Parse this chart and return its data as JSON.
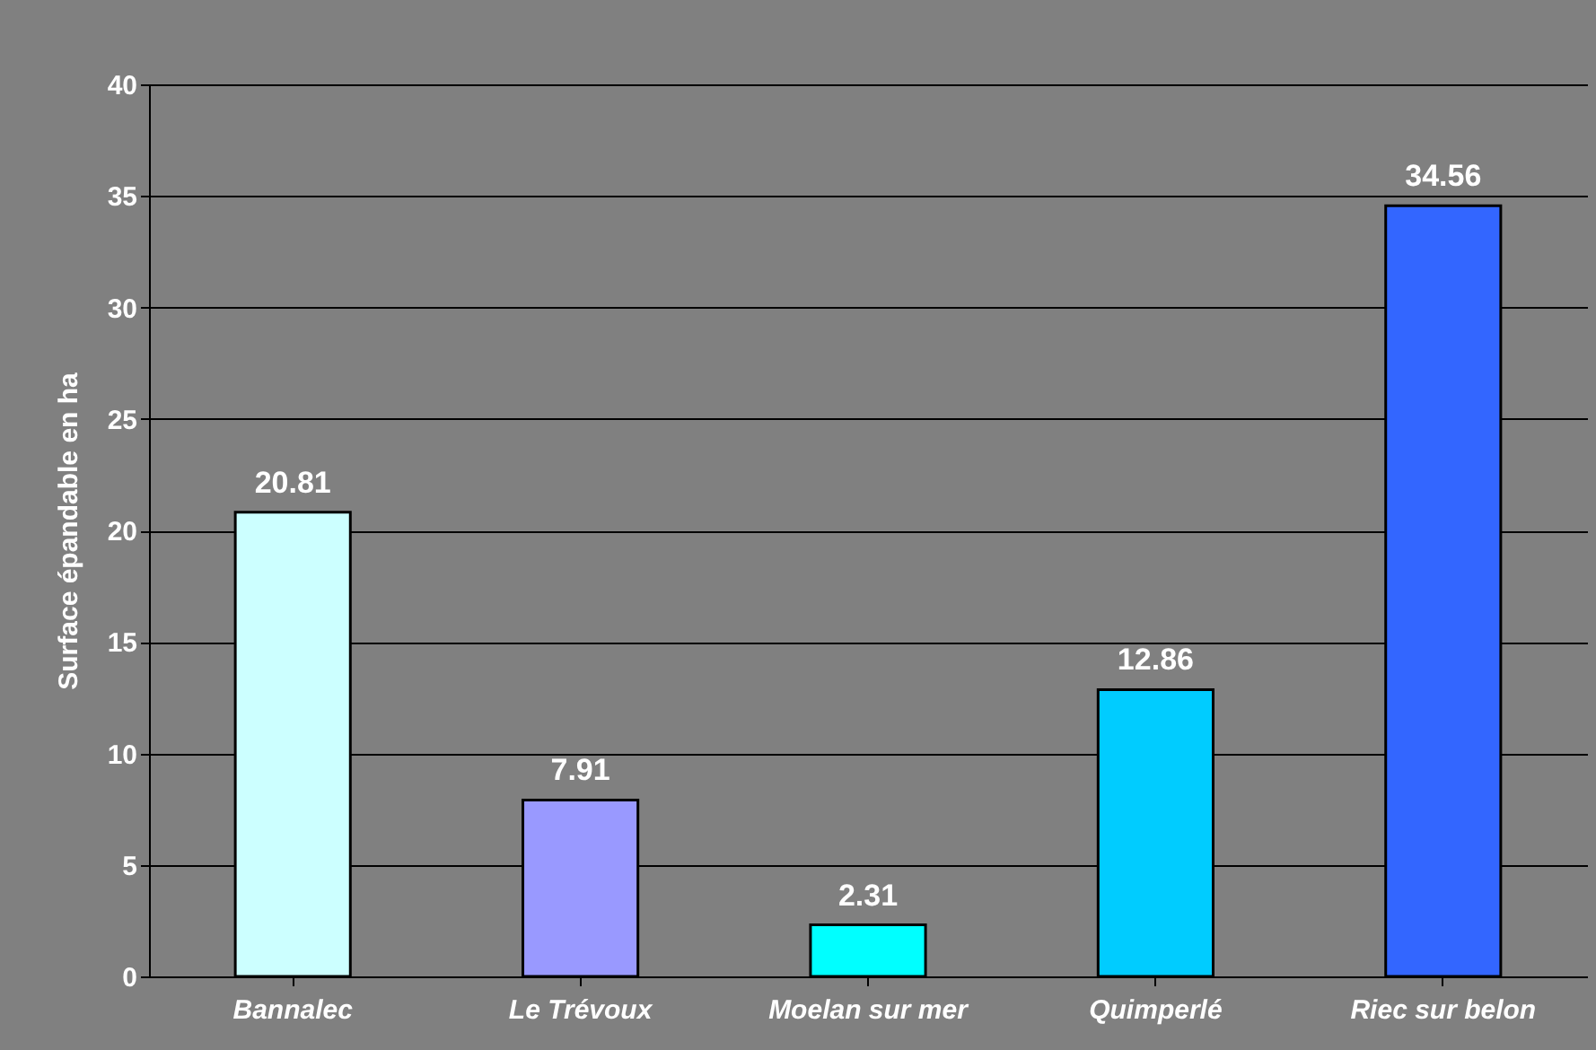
{
  "chart_data": {
    "type": "bar",
    "ylabel": "Surface épandable en ha",
    "categories": [
      "Bannalec",
      "Le Trévoux",
      "Moelan sur mer",
      "Quimperlé",
      "Riec sur belon"
    ],
    "values": [
      20.81,
      7.91,
      2.31,
      12.86,
      34.56
    ],
    "colors": [
      "#ccffff",
      "#9999ff",
      "#00ffff",
      "#00ccff",
      "#3366ff"
    ],
    "ylim": [
      0,
      40
    ],
    "yticks": [
      0,
      5,
      10,
      15,
      20,
      25,
      30,
      35,
      40
    ],
    "grid": "y",
    "data_labels": true
  }
}
